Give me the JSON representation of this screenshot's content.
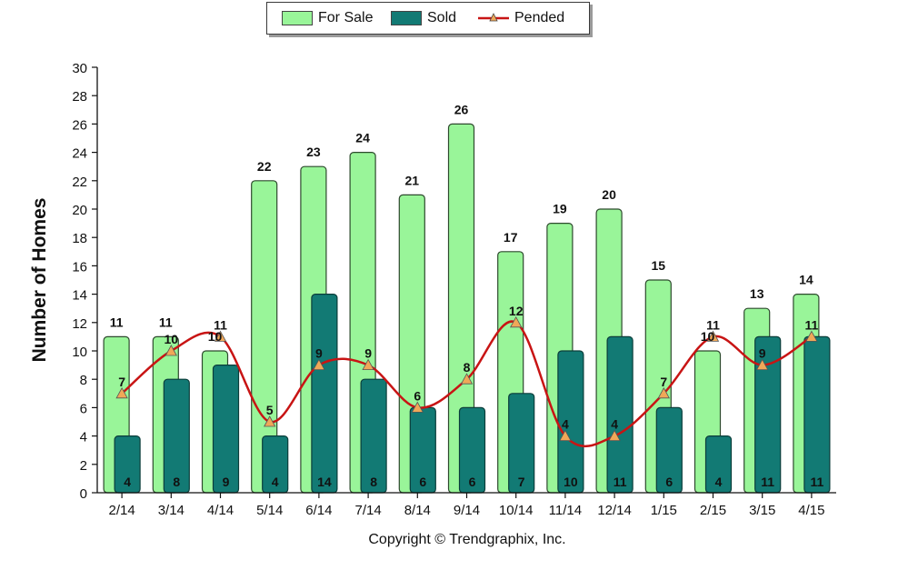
{
  "legend": {
    "for_sale": "For Sale",
    "sold": "Sold",
    "pended": "Pended"
  },
  "copyright": "Copyright © Trendgraphix, Inc.",
  "colors": {
    "for_sale": "#99f599",
    "sold": "#127a74",
    "pended_line": "#c81414",
    "pended_marker": "#f0a858"
  },
  "chart_data": {
    "type": "bar",
    "ylabel": "Number of Homes",
    "xlabel": "",
    "ylim": [
      0,
      30
    ],
    "yticks": [
      0,
      2,
      4,
      6,
      8,
      10,
      12,
      14,
      16,
      18,
      20,
      22,
      24,
      26,
      28,
      30
    ],
    "grid": false,
    "legend_position": "top-center",
    "categories": [
      "2/14",
      "3/14",
      "4/14",
      "5/14",
      "6/14",
      "7/14",
      "8/14",
      "9/14",
      "10/14",
      "11/14",
      "12/14",
      "1/15",
      "2/15",
      "3/15",
      "4/15"
    ],
    "series": [
      {
        "name": "For Sale",
        "kind": "bar",
        "values": [
          11,
          11,
          10,
          22,
          23,
          24,
          21,
          26,
          17,
          19,
          20,
          15,
          10,
          13,
          14
        ]
      },
      {
        "name": "Sold",
        "kind": "bar",
        "values": [
          4,
          8,
          9,
          4,
          14,
          8,
          6,
          6,
          7,
          10,
          11,
          6,
          4,
          11,
          11
        ]
      },
      {
        "name": "Pended",
        "kind": "line",
        "values": [
          7,
          10,
          11,
          5,
          9,
          9,
          6,
          8,
          12,
          4,
          4,
          7,
          11,
          9,
          11
        ]
      }
    ]
  }
}
